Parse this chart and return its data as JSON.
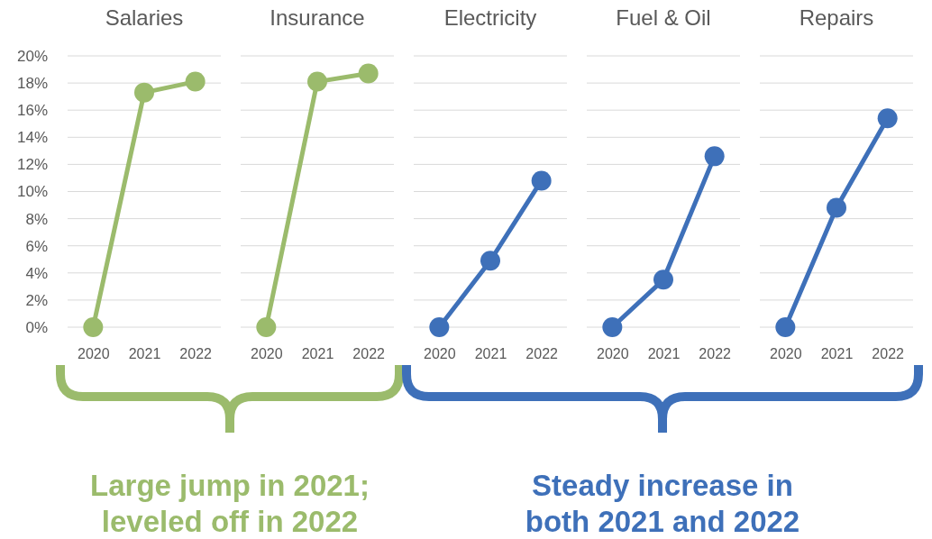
{
  "chart_data": [
    {
      "type": "line",
      "title": "Salaries",
      "categories": [
        "2020",
        "2021",
        "2022"
      ],
      "series": [
        {
          "color": "#9bbb6c",
          "values": [
            0,
            17.3,
            18.1
          ]
        }
      ],
      "ylim": [
        0,
        20
      ],
      "yticks": [
        {
          "value": 0,
          "label": "0%"
        },
        {
          "value": 2,
          "label": "2%"
        },
        {
          "value": 4,
          "label": "4%"
        },
        {
          "value": 6,
          "label": "6%"
        },
        {
          "value": 8,
          "label": "8%"
        },
        {
          "value": 10,
          "label": "10%"
        },
        {
          "value": 12,
          "label": "12%"
        },
        {
          "value": 14,
          "label": "14%"
        },
        {
          "value": 16,
          "label": "16%"
        },
        {
          "value": 18,
          "label": "18%"
        },
        {
          "value": 20,
          "label": "20%"
        }
      ],
      "grid": "y",
      "marker": "circle",
      "annotations": [
        "Large jump in 2021; leveled off in 2022"
      ]
    },
    {
      "type": "line",
      "title": "Insurance",
      "categories": [
        "2020",
        "2021",
        "2022"
      ],
      "series": [
        {
          "color": "#9bbb6c",
          "values": [
            0,
            18.1,
            18.7
          ]
        }
      ],
      "ylim": [
        0,
        20
      ],
      "yticks": [
        {
          "value": 0,
          "label": null
        },
        {
          "value": 2,
          "label": null
        },
        {
          "value": 4,
          "label": null
        },
        {
          "value": 6,
          "label": null
        },
        {
          "value": 8,
          "label": null
        },
        {
          "value": 10,
          "label": null
        },
        {
          "value": 12,
          "label": null
        },
        {
          "value": 14,
          "label": null
        },
        {
          "value": 16,
          "label": null
        },
        {
          "value": 18,
          "label": null
        },
        {
          "value": 20,
          "label": null
        }
      ],
      "grid": "y",
      "marker": "circle",
      "tick_labels": "x"
    },
    {
      "type": "line",
      "title": "Electricity",
      "categories": [
        "2020",
        "2021",
        "2022"
      ],
      "series": [
        {
          "color": "#3e70b9",
          "values": [
            0,
            4.9,
            10.8
          ]
        }
      ],
      "ylim": [
        0,
        20
      ],
      "yticks": [
        {
          "value": 0,
          "label": null
        },
        {
          "value": 2,
          "label": null
        },
        {
          "value": 4,
          "label": null
        },
        {
          "value": 6,
          "label": null
        },
        {
          "value": 8,
          "label": null
        },
        {
          "value": 10,
          "label": null
        },
        {
          "value": 12,
          "label": null
        },
        {
          "value": 14,
          "label": null
        },
        {
          "value": 16,
          "label": null
        },
        {
          "value": 18,
          "label": null
        },
        {
          "value": 20,
          "label": null
        }
      ],
      "grid": "y",
      "marker": "circle",
      "tick_labels": "x",
      "annotations": [
        "Steady increase in both 2021 and 2022"
      ]
    },
    {
      "type": "line",
      "title": "Fuel & Oil",
      "categories": [
        "2020",
        "2021",
        "2022"
      ],
      "series": [
        {
          "color": "#3e70b9",
          "values": [
            0,
            3.5,
            12.6
          ]
        }
      ],
      "ylim": [
        0,
        20
      ],
      "yticks": [
        {
          "value": 0,
          "label": null
        },
        {
          "value": 2,
          "label": null
        },
        {
          "value": 4,
          "label": null
        },
        {
          "value": 6,
          "label": null
        },
        {
          "value": 8,
          "label": null
        },
        {
          "value": 10,
          "label": null
        },
        {
          "value": 12,
          "label": null
        },
        {
          "value": 14,
          "label": null
        },
        {
          "value": 16,
          "label": null
        },
        {
          "value": 18,
          "label": null
        },
        {
          "value": 20,
          "label": null
        }
      ],
      "grid": "y",
      "marker": "circle",
      "tick_labels": "x"
    },
    {
      "type": "line",
      "title": "Repairs",
      "categories": [
        "2020",
        "2021",
        "2022"
      ],
      "series": [
        {
          "color": "#3e70b9",
          "values": [
            0,
            8.8,
            15.4
          ]
        }
      ],
      "ylim": [
        0,
        20
      ],
      "yticks": [
        {
          "value": 0,
          "label": null
        },
        {
          "value": 2,
          "label": null
        },
        {
          "value": 4,
          "label": null
        },
        {
          "value": 6,
          "label": null
        },
        {
          "value": 8,
          "label": null
        },
        {
          "value": 10,
          "label": null
        },
        {
          "value": 12,
          "label": null
        },
        {
          "value": 14,
          "label": null
        },
        {
          "value": 16,
          "label": null
        },
        {
          "value": 18,
          "label": null
        },
        {
          "value": 20,
          "label": null
        }
      ],
      "grid": "y",
      "marker": "circle",
      "tick_labels": "x"
    }
  ]
}
